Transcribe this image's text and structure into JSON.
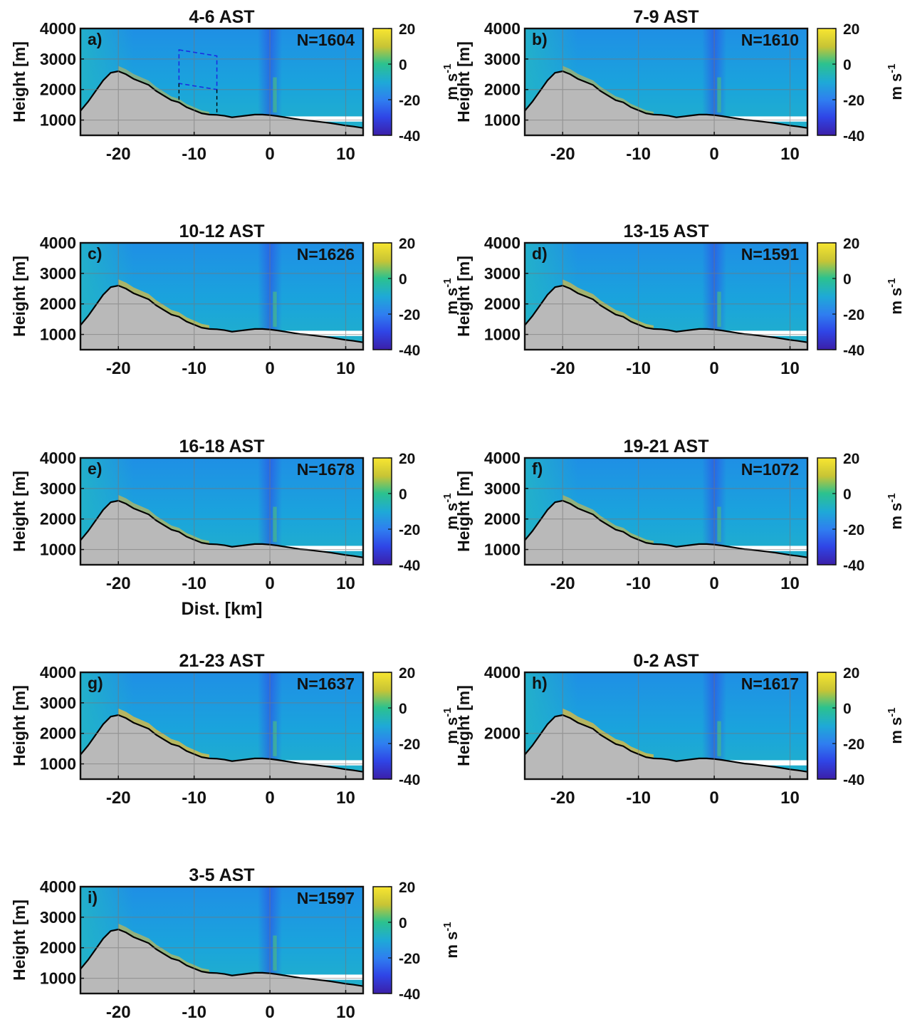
{
  "figure": {
    "xlabel_shared": "Dist. [km]",
    "colorbar": {
      "unit": "m s-1",
      "unit_main": "m s",
      "unit_exp": "-1",
      "ticks": [
        20,
        0,
        -20,
        -40
      ],
      "range": [
        -40,
        20
      ]
    }
  },
  "chart_data": [
    {
      "type": "heatmap",
      "panel": "a)",
      "title": "4-6 AST",
      "count_label": "N=1604",
      "xlabel": "",
      "ylabel": "Height [m]",
      "xlim": [
        -25,
        12.3
      ],
      "ylim": [
        500,
        4000
      ],
      "xticks": [
        -20,
        -10,
        0,
        10
      ],
      "yticks": [
        1000,
        2000,
        3000,
        4000
      ],
      "colorbar_unit": "m s-1",
      "has_box": true,
      "intensity": 0.85
    },
    {
      "type": "heatmap",
      "panel": "b)",
      "title": "7-9 AST",
      "count_label": "N=1610",
      "xlabel": "",
      "ylabel": "Height [m]",
      "xlim": [
        -25,
        12.3
      ],
      "ylim": [
        500,
        4000
      ],
      "xticks": [
        -20,
        -10,
        0,
        10
      ],
      "yticks": [
        1000,
        2000,
        3000,
        4000
      ],
      "colorbar_unit": "m s-1",
      "has_box": false,
      "intensity": 0.9
    },
    {
      "type": "heatmap",
      "panel": "c)",
      "title": "10-12 AST",
      "count_label": "N=1626",
      "xlabel": "",
      "ylabel": "Height [m]",
      "xlim": [
        -25,
        12.3
      ],
      "ylim": [
        500,
        4000
      ],
      "xticks": [
        -20,
        -10,
        0,
        10
      ],
      "yticks": [
        1000,
        2000,
        3000,
        4000
      ],
      "colorbar_unit": "m s-1",
      "has_box": false,
      "intensity": 1.2
    },
    {
      "type": "heatmap",
      "panel": "d)",
      "title": "13-15 AST",
      "count_label": "N=1591",
      "xlabel": "",
      "ylabel": "Height [m]",
      "xlim": [
        -25,
        12.3
      ],
      "ylim": [
        500,
        4000
      ],
      "xticks": [
        -20,
        -10,
        0,
        10
      ],
      "yticks": [
        1000,
        2000,
        3000,
        4000
      ],
      "colorbar_unit": "m s-1",
      "has_box": false,
      "intensity": 1.15
    },
    {
      "type": "heatmap",
      "panel": "e)",
      "title": "16-18 AST",
      "count_label": "N=1678",
      "xlabel": "Dist. [km]",
      "ylabel": "Height [m]",
      "xlim": [
        -25,
        12.3
      ],
      "ylim": [
        500,
        4000
      ],
      "xticks": [
        -20,
        -10,
        0,
        10
      ],
      "yticks": [
        1000,
        2000,
        3000,
        4000
      ],
      "colorbar_unit": "m s-1",
      "has_box": false,
      "intensity": 1.0
    },
    {
      "type": "heatmap",
      "panel": "f)",
      "title": "19-21 AST",
      "count_label": "N=1072",
      "xlabel": "",
      "ylabel": "Height [m]",
      "xlim": [
        -25,
        12.3
      ],
      "ylim": [
        500,
        4000
      ],
      "xticks": [
        -20,
        -10,
        0,
        10
      ],
      "yticks": [
        1000,
        2000,
        3000,
        4000
      ],
      "colorbar_unit": "m s-1",
      "has_box": false,
      "intensity": 1.0
    },
    {
      "type": "heatmap",
      "panel": "g)",
      "title": "21-23 AST",
      "count_label": "N=1637",
      "xlabel": "",
      "ylabel": "Height [m]",
      "xlim": [
        -25,
        12.3
      ],
      "ylim": [
        500,
        4000
      ],
      "xticks": [
        -20,
        -10,
        0,
        10
      ],
      "yticks": [
        1000,
        2000,
        3000,
        4000
      ],
      "colorbar_unit": "m s-1",
      "has_box": false,
      "intensity": 1.3
    },
    {
      "type": "heatmap",
      "panel": "h)",
      "title": "0-2 AST",
      "count_label": "N=1617",
      "xlabel": "",
      "ylabel": "Height [m]",
      "xlim": [
        -25,
        12.3
      ],
      "ylim": [
        500,
        4000
      ],
      "xticks": [
        -20,
        -10,
        0,
        10
      ],
      "yticks": [
        2000,
        4000
      ],
      "colorbar_unit": "m s-1",
      "has_box": false,
      "intensity": 1.3
    },
    {
      "type": "heatmap",
      "panel": "i)",
      "title": "3-5 AST",
      "count_label": "N=1597",
      "xlabel": "",
      "ylabel": "Height [m]",
      "xlim": [
        -25,
        12.3
      ],
      "ylim": [
        500,
        4000
      ],
      "xticks": [
        -20,
        -10,
        0,
        10
      ],
      "yticks": [
        1000,
        2000,
        3000,
        4000
      ],
      "colorbar_unit": "m s-1",
      "has_box": false,
      "intensity": 1.0
    }
  ],
  "terrain": {
    "x": [
      -25,
      -24,
      -23,
      -22,
      -21,
      -20,
      -19,
      -18,
      -17,
      -16,
      -15,
      -14,
      -13,
      -12,
      -11,
      -10,
      -9,
      -8,
      -7,
      -6,
      -5,
      -4,
      -3,
      -2,
      -1,
      0,
      1,
      2,
      3,
      4,
      5,
      6,
      7,
      8,
      9,
      10,
      11,
      12.3
    ],
    "z": [
      1300,
      1600,
      1950,
      2300,
      2550,
      2600,
      2500,
      2350,
      2250,
      2150,
      1950,
      1800,
      1650,
      1580,
      1420,
      1320,
      1220,
      1180,
      1170,
      1140,
      1090,
      1120,
      1150,
      1180,
      1180,
      1160,
      1130,
      1090,
      1050,
      1010,
      990,
      960,
      930,
      900,
      860,
      820,
      790,
      740
    ]
  },
  "box": {
    "x": [
      -12,
      -7
    ],
    "top_z": [
      3300,
      3100
    ],
    "bottom_z": [
      2200,
      2000
    ],
    "base_z": [
      1550,
      1150
    ]
  }
}
